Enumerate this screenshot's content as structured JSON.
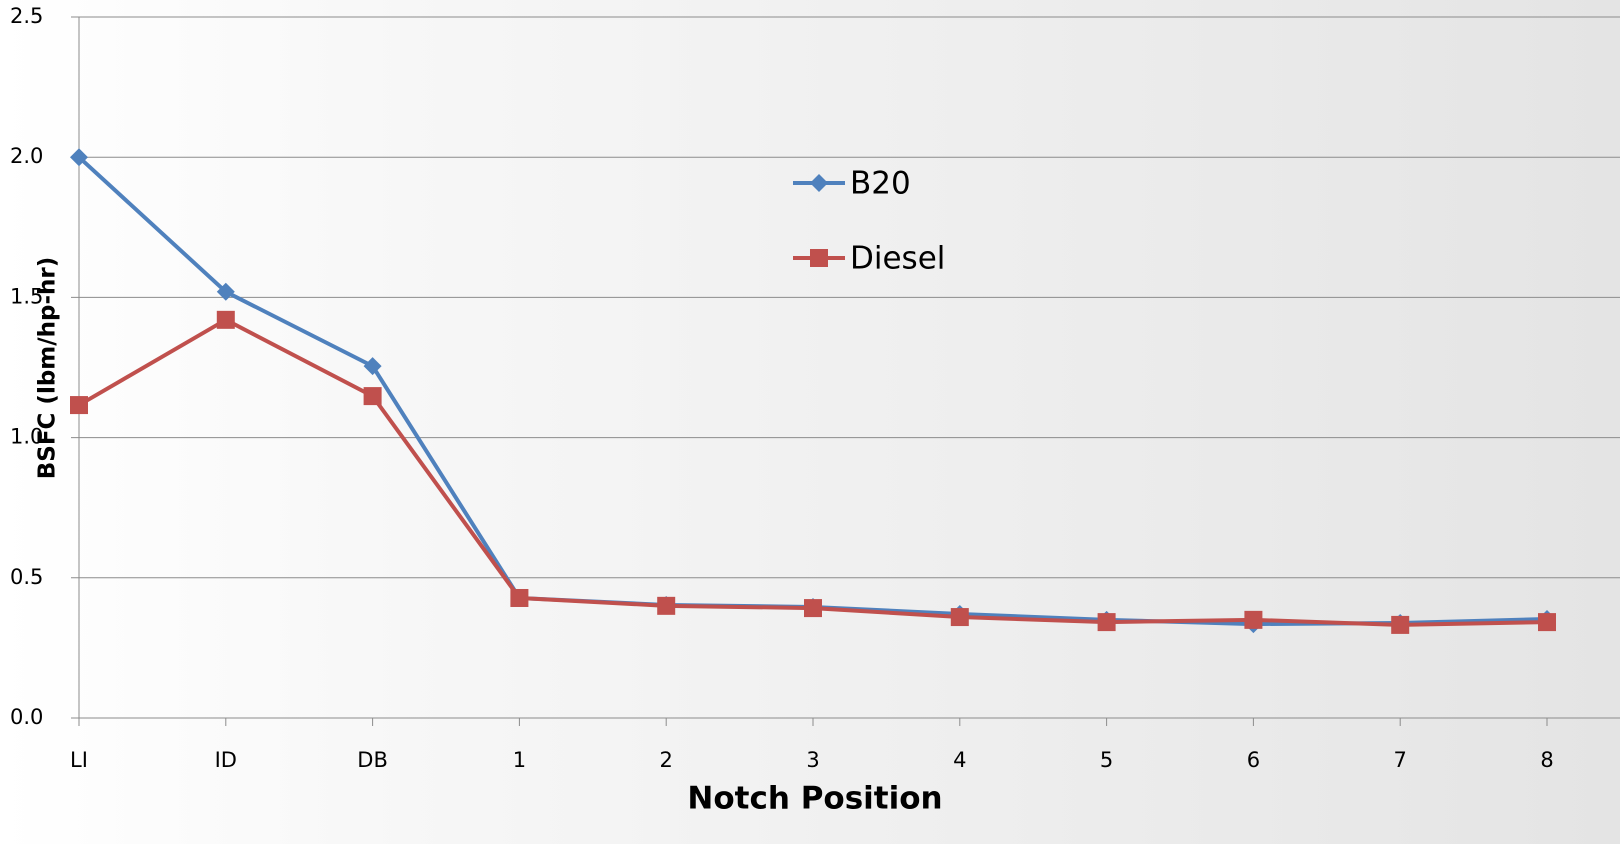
{
  "chart_data": {
    "type": "line",
    "x_label": "Notch Position",
    "y_label": "BSFC (lbm/hp-hr)",
    "categories": [
      "LI",
      "ID",
      "DB",
      "1",
      "2",
      "3",
      "4",
      "5",
      "6",
      "7",
      "8"
    ],
    "series": [
      {
        "name": "B20",
        "color": "#4f81bd",
        "marker": "diamond",
        "values": [
          2.0,
          1.52,
          1.255,
          0.428,
          0.403,
          0.396,
          0.371,
          0.35,
          0.335,
          0.339,
          0.353
        ]
      },
      {
        "name": "Diesel",
        "color": "#c0504d",
        "marker": "square",
        "values": [
          1.116,
          1.42,
          1.148,
          0.428,
          0.4,
          0.392,
          0.36,
          0.342,
          0.35,
          0.332,
          0.342
        ]
      }
    ],
    "ylim": [
      0,
      2.5
    ],
    "yticks": [
      {
        "value": 0,
        "label": "0.0"
      },
      0.5,
      {
        "value": 1,
        "label": "1.0"
      },
      1.5,
      {
        "value": 2,
        "label": "2.0"
      },
      2.5
    ],
    "grid": true,
    "legend": "center"
  }
}
